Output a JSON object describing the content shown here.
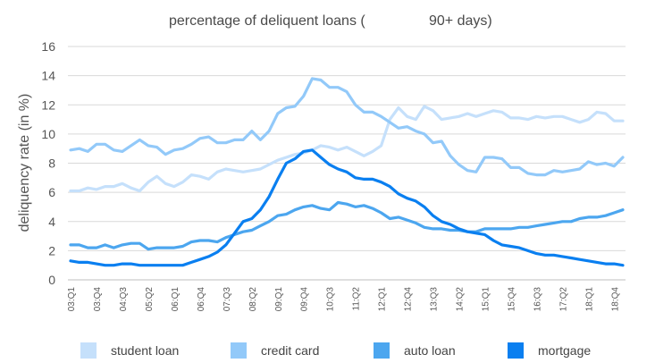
{
  "chart_data": {
    "type": "line",
    "title": "percentage of deliquent loans (",
    "title_suffix": "90+ days)",
    "ylabel": "deliquency rate (in %)",
    "xlabel": "",
    "ylim": [
      0,
      16
    ],
    "yticks": [
      0,
      2,
      4,
      6,
      8,
      10,
      12,
      14,
      16
    ],
    "grid": true,
    "legend_position": "bottom",
    "x": [
      "03:Q1",
      "03:Q2",
      "03:Q3",
      "03:Q4",
      "04:Q1",
      "04:Q2",
      "04:Q3",
      "04:Q4",
      "05:Q1",
      "05:Q2",
      "05:Q3",
      "05:Q4",
      "06:Q1",
      "06:Q2",
      "06:Q3",
      "06:Q4",
      "07:Q1",
      "07:Q2",
      "07:Q3",
      "07:Q4",
      "08:Q1",
      "08:Q2",
      "08:Q3",
      "08:Q4",
      "09:Q1",
      "09:Q2",
      "09:Q3",
      "09:Q4",
      "10:Q1",
      "10:Q2",
      "10:Q3",
      "10:Q4",
      "11:Q1",
      "11:Q2",
      "11:Q3",
      "11:Q4",
      "12:Q1",
      "12:Q2",
      "12:Q3",
      "12:Q4",
      "13:Q1",
      "13:Q2",
      "13:Q3",
      "13:Q4",
      "14:Q1",
      "14:Q2",
      "14:Q3",
      "14:Q4",
      "15:Q1",
      "15:Q2",
      "15:Q3",
      "15:Q4",
      "16:Q1",
      "16:Q2",
      "16:Q3",
      "16:Q4",
      "17:Q1",
      "17:Q2",
      "17:Q3",
      "17:Q4",
      "18:Q1",
      "18:Q2",
      "18:Q3",
      "18:Q4",
      "19:Q1"
    ],
    "xtick_labels": [
      "03:Q1",
      "03:Q4",
      "04:Q3",
      "05:Q2",
      "06:Q1",
      "06:Q4",
      "07:Q3",
      "08:Q2",
      "09:Q1",
      "09:Q4",
      "10:Q3",
      "11:Q2",
      "12:Q1",
      "12:Q4",
      "13:Q3",
      "14:Q2",
      "15:Q1",
      "15:Q4",
      "16:Q3",
      "17:Q2",
      "18:Q1",
      "18:Q4"
    ],
    "series": [
      {
        "name": "student loan",
        "color": "#c5e0fb",
        "values": [
          6.1,
          6.1,
          6.3,
          6.2,
          6.4,
          6.4,
          6.6,
          6.3,
          6.1,
          6.7,
          7.1,
          6.6,
          6.4,
          6.7,
          7.2,
          7.1,
          6.9,
          7.4,
          7.6,
          7.5,
          7.4,
          7.5,
          7.6,
          7.9,
          8.2,
          8.4,
          8.6,
          8.7,
          8.9,
          9.2,
          9.1,
          8.9,
          9.1,
          8.8,
          8.5,
          8.8,
          9.2,
          11.0,
          11.8,
          11.2,
          11.0,
          11.9,
          11.6,
          11.0,
          11.1,
          11.2,
          11.4,
          11.2,
          11.4,
          11.6,
          11.5,
          11.1,
          11.1,
          11.0,
          11.2,
          11.1,
          11.2,
          11.2,
          11.0,
          10.8,
          11.0,
          11.5,
          11.4,
          10.9,
          10.9
        ]
      },
      {
        "name": "credit card",
        "color": "#92c9f9",
        "values": [
          8.9,
          9.0,
          8.8,
          9.3,
          9.3,
          8.9,
          8.8,
          9.2,
          9.6,
          9.2,
          9.1,
          8.6,
          8.9,
          9.0,
          9.3,
          9.7,
          9.8,
          9.4,
          9.4,
          9.6,
          9.6,
          10.2,
          9.6,
          10.2,
          11.4,
          11.8,
          11.9,
          12.6,
          13.8,
          13.7,
          13.2,
          13.2,
          12.9,
          12.0,
          11.5,
          11.5,
          11.2,
          10.8,
          10.4,
          10.5,
          10.2,
          10.0,
          9.4,
          9.5,
          8.5,
          7.9,
          7.5,
          7.4,
          8.4,
          8.4,
          8.3,
          7.7,
          7.7,
          7.3,
          7.2,
          7.2,
          7.5,
          7.4,
          7.5,
          7.6,
          8.1,
          7.9,
          8.0,
          7.8,
          8.4
        ]
      },
      {
        "name": "auto loan",
        "color": "#4ca6ef",
        "values": [
          2.4,
          2.4,
          2.2,
          2.2,
          2.4,
          2.2,
          2.4,
          2.5,
          2.5,
          2.1,
          2.2,
          2.2,
          2.2,
          2.3,
          2.6,
          2.7,
          2.7,
          2.6,
          2.9,
          3.1,
          3.3,
          3.4,
          3.7,
          4.0,
          4.4,
          4.5,
          4.8,
          5.0,
          5.1,
          4.9,
          4.8,
          5.3,
          5.2,
          5.0,
          5.1,
          4.9,
          4.6,
          4.2,
          4.3,
          4.1,
          3.9,
          3.6,
          3.5,
          3.5,
          3.4,
          3.4,
          3.3,
          3.3,
          3.5,
          3.5,
          3.5,
          3.5,
          3.6,
          3.6,
          3.7,
          3.8,
          3.9,
          4.0,
          4.0,
          4.2,
          4.3,
          4.3,
          4.4,
          4.6,
          4.8
        ]
      },
      {
        "name": "mortgage",
        "color": "#0a7ff0",
        "values": [
          1.3,
          1.2,
          1.2,
          1.1,
          1.0,
          1.0,
          1.1,
          1.1,
          1.0,
          1.0,
          1.0,
          1.0,
          1.0,
          1.0,
          1.2,
          1.4,
          1.6,
          1.9,
          2.4,
          3.2,
          4.0,
          4.2,
          4.8,
          5.7,
          6.9,
          8.0,
          8.3,
          8.8,
          8.9,
          8.4,
          7.9,
          7.6,
          7.4,
          7.0,
          6.9,
          6.9,
          6.7,
          6.4,
          5.9,
          5.6,
          5.4,
          5.0,
          4.4,
          4.0,
          3.8,
          3.5,
          3.3,
          3.2,
          3.1,
          2.7,
          2.4,
          2.3,
          2.2,
          2.0,
          1.8,
          1.7,
          1.7,
          1.6,
          1.5,
          1.4,
          1.3,
          1.2,
          1.1,
          1.1,
          1.0
        ]
      }
    ]
  }
}
